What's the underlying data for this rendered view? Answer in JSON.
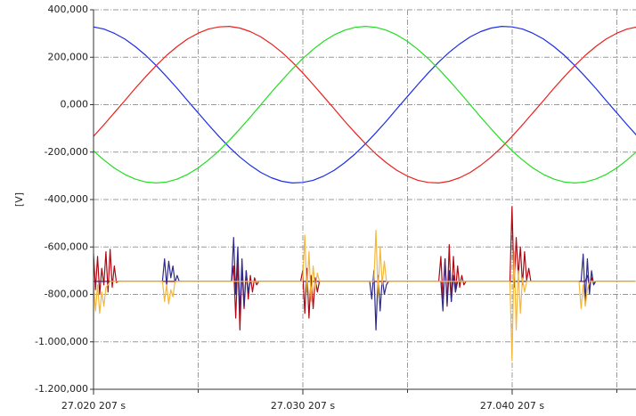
{
  "chart_data": {
    "type": "line",
    "y_label": "[V]",
    "ylim": [
      -1200000,
      400000
    ],
    "yticks": [
      {
        "value": 400000,
        "label": "400,000"
      },
      {
        "value": 200000,
        "label": "200,000"
      },
      {
        "value": 0,
        "label": "0,000"
      },
      {
        "value": -200000,
        "label": "-200,000"
      },
      {
        "value": -400000,
        "label": "-400,000"
      },
      {
        "value": -600000,
        "label": "-600,000"
      },
      {
        "value": -800000,
        "label": "-800,000"
      },
      {
        "value": -1000000,
        "label": "-1.000,000"
      },
      {
        "value": -1200000,
        "label": "-1.200,000"
      }
    ],
    "xlim": [
      27.020207,
      27.046123
    ],
    "xticks": [
      {
        "value": 27.020207,
        "label": "27.020 207 s"
      },
      {
        "value": 27.030207,
        "label": "27.030 207 s"
      },
      {
        "value": 27.040207,
        "label": "27.040 207 s"
      }
    ],
    "xminorticks": [
      27.025207,
      27.035207,
      27.045207
    ],
    "grid": true,
    "x": [
      27.0202,
      27.0207,
      27.0212,
      27.0217,
      27.0222,
      27.0227,
      27.0232,
      27.0237,
      27.0242,
      27.0247,
      27.0252,
      27.0257,
      27.0262,
      27.0267,
      27.0272,
      27.0277,
      27.0282,
      27.0287,
      27.0292,
      27.0297,
      27.0302,
      27.0307,
      27.0312,
      27.0317,
      27.0322,
      27.0327,
      27.0332,
      27.0337,
      27.0342,
      27.0347,
      27.0352,
      27.0357,
      27.0362,
      27.0367,
      27.0372,
      27.0377,
      27.0382,
      27.0387,
      27.0392,
      27.0397,
      27.0402,
      27.0407,
      27.0412,
      27.0417,
      27.0422,
      27.0427,
      27.0432,
      27.0437,
      27.0442,
      27.0447,
      27.0452,
      27.0457,
      27.0462
    ],
    "series": [
      {
        "color": "#1c2ee6",
        "values": [
          328000,
          319000,
          301000,
          277000,
          245000,
          208000,
          165000,
          118000,
          69000,
          17000,
          -34000,
          -85000,
          -134000,
          -180000,
          -221000,
          -256000,
          -286000,
          -308000,
          -323000,
          -330000,
          -328000,
          -319000,
          -301000,
          -277000,
          -245000,
          -208000,
          -165000,
          -118000,
          -69000,
          -17000,
          34000,
          85000,
          134000,
          180000,
          221000,
          256000,
          286000,
          308000,
          323000,
          330000,
          328000,
          319000,
          301000,
          277000,
          245000,
          208000,
          165000,
          118000,
          69000,
          17000,
          -34000,
          -85000,
          -134000
        ]
      },
      {
        "color": "#e8221e",
        "values": [
          -134000,
          -85000,
          -34000,
          17000,
          69000,
          118000,
          165000,
          208000,
          245000,
          277000,
          301000,
          319000,
          328000,
          330000,
          323000,
          308000,
          286000,
          256000,
          221000,
          180000,
          134000,
          85000,
          34000,
          -17000,
          -69000,
          -118000,
          -165000,
          -208000,
          -245000,
          -277000,
          -301000,
          -319000,
          -328000,
          -330000,
          -323000,
          -308000,
          -286000,
          -256000,
          -221000,
          -180000,
          -134000,
          -85000,
          -34000,
          17000,
          69000,
          118000,
          165000,
          208000,
          245000,
          277000,
          301000,
          319000,
          328000
        ]
      },
      {
        "color": "#22dd22",
        "values": [
          -194000,
          -233000,
          -267000,
          -294000,
          -314000,
          -326000,
          -330000,
          -326000,
          -314000,
          -294000,
          -267000,
          -233000,
          -194000,
          -150000,
          -102000,
          -52000,
          0,
          52000,
          102000,
          150000,
          194000,
          233000,
          267000,
          294000,
          314000,
          326000,
          330000,
          326000,
          314000,
          294000,
          267000,
          233000,
          194000,
          150000,
          102000,
          52000,
          0,
          -52000,
          -102000,
          -150000,
          -194000,
          -233000,
          -267000,
          -294000,
          -314000,
          -326000,
          -330000,
          -326000,
          -314000,
          -294000,
          -267000,
          -233000,
          -194000
        ]
      },
      {
        "color": "#b00812",
        "x": [
          27.0202,
          27.0203,
          27.0204,
          27.0205,
          27.0206,
          27.0207,
          27.0208,
          27.0209,
          27.021,
          27.0211,
          27.0212,
          27.0213,
          27.0214,
          27.0268,
          27.0269,
          27.027,
          27.0271,
          27.0272,
          27.0273,
          27.0274,
          27.0275,
          27.0276,
          27.0277,
          27.0278,
          27.0279,
          27.028,
          27.0281,
          27.0301,
          27.0302,
          27.0303,
          27.0304,
          27.0305,
          27.0306,
          27.0307,
          27.0308,
          27.0309,
          27.031,
          27.0367,
          27.0368,
          27.0369,
          27.037,
          27.0371,
          27.0372,
          27.0373,
          27.0374,
          27.0375,
          27.0376,
          27.0377,
          27.0378,
          27.0379,
          27.038,
          27.0401,
          27.0402,
          27.0403,
          27.0404,
          27.0405,
          27.0406,
          27.0407,
          27.0408,
          27.0409,
          27.041,
          27.0411,
          27.0437,
          27.0438,
          27.0439,
          27.044,
          27.0441,
          27.0442,
          27.0461
        ],
        "values": [
          -620000,
          -780000,
          -640000,
          -800000,
          -690000,
          -760000,
          -620000,
          -790000,
          -610000,
          -770000,
          -680000,
          -750000,
          -745000,
          -745000,
          -680000,
          -900000,
          -650000,
          -950000,
          -690000,
          -860000,
          -700000,
          -820000,
          -720000,
          -790000,
          -730000,
          -760000,
          -745000,
          -745000,
          -700000,
          -880000,
          -690000,
          -900000,
          -720000,
          -860000,
          -730000,
          -790000,
          -745000,
          -745000,
          -640000,
          -820000,
          -650000,
          -850000,
          -590000,
          -830000,
          -640000,
          -790000,
          -680000,
          -770000,
          -720000,
          -760000,
          -745000,
          -745000,
          -430000,
          -770000,
          -560000,
          -720000,
          -600000,
          -760000,
          -620000,
          -740000,
          -690000,
          -745000,
          -745000,
          -720000,
          -770000,
          -730000,
          -755000,
          -745000,
          -745000
        ]
      },
      {
        "color": "#302a88",
        "x": [
          27.0202,
          27.0235,
          27.0236,
          27.0237,
          27.0238,
          27.0239,
          27.024,
          27.0241,
          27.0242,
          27.0243,
          27.0268,
          27.0269,
          27.027,
          27.0271,
          27.0272,
          27.0273,
          27.0274,
          27.0275,
          27.0276,
          27.0277,
          27.0334,
          27.0335,
          27.0336,
          27.0337,
          27.0338,
          27.0339,
          27.034,
          27.0341,
          27.0342,
          27.0343,
          27.0368,
          27.0369,
          27.037,
          27.0371,
          27.0372,
          27.0373,
          27.0374,
          27.0375,
          27.0376,
          27.0435,
          27.0436,
          27.0437,
          27.0438,
          27.0439,
          27.044,
          27.0441,
          27.0442,
          27.0461
        ],
        "values": [
          -745000,
          -745000,
          -650000,
          -760000,
          -660000,
          -730000,
          -680000,
          -750000,
          -720000,
          -745000,
          -745000,
          -560000,
          -800000,
          -600000,
          -880000,
          -650000,
          -850000,
          -700000,
          -790000,
          -745000,
          -745000,
          -820000,
          -700000,
          -950000,
          -720000,
          -870000,
          -730000,
          -800000,
          -760000,
          -745000,
          -745000,
          -870000,
          -650000,
          -840000,
          -700000,
          -830000,
          -720000,
          -790000,
          -745000,
          -745000,
          -630000,
          -830000,
          -650000,
          -800000,
          -700000,
          -760000,
          -745000,
          -745000
        ]
      },
      {
        "color": "#f4b73c",
        "x": [
          27.0202,
          27.0203,
          27.0204,
          27.0205,
          27.0206,
          27.0207,
          27.0208,
          27.0209,
          27.021,
          27.0235,
          27.0236,
          27.0237,
          27.0238,
          27.0239,
          27.024,
          27.0241,
          27.0302,
          27.0303,
          27.0304,
          27.0305,
          27.0306,
          27.0307,
          27.0308,
          27.0309,
          27.031,
          27.0336,
          27.0337,
          27.0338,
          27.0339,
          27.034,
          27.0341,
          27.0342,
          27.0401,
          27.0402,
          27.0403,
          27.0404,
          27.0405,
          27.0406,
          27.0407,
          27.0408,
          27.0409,
          27.0434,
          27.0435,
          27.0436,
          27.0437,
          27.0438,
          27.0439,
          27.0461
        ],
        "values": [
          -745000,
          -870000,
          -760000,
          -880000,
          -790000,
          -850000,
          -770000,
          -760000,
          -745000,
          -745000,
          -830000,
          -760000,
          -840000,
          -780000,
          -810000,
          -745000,
          -745000,
          -550000,
          -790000,
          -620000,
          -830000,
          -680000,
          -780000,
          -710000,
          -745000,
          -745000,
          -530000,
          -800000,
          -600000,
          -760000,
          -660000,
          -745000,
          -745000,
          -1080000,
          -620000,
          -950000,
          -700000,
          -880000,
          -730000,
          -790000,
          -745000,
          -745000,
          -860000,
          -760000,
          -850000,
          -780000,
          -745000,
          -745000
        ]
      }
    ]
  }
}
